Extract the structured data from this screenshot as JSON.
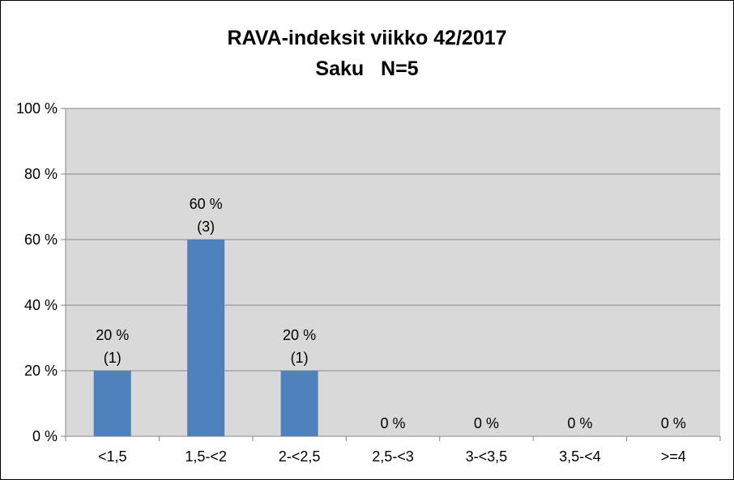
{
  "chart_data": {
    "type": "bar",
    "title": "RAVA-indeksit viikko 42/2017",
    "subtitle": "Saku   N=5",
    "categories": [
      "<1,5",
      "1,5-<2",
      "2-<2,5",
      "2,5-<3",
      "3-<3,5",
      "3,5-<4",
      ">=4"
    ],
    "values": [
      20,
      60,
      20,
      0,
      0,
      0,
      0
    ],
    "counts": [
      1,
      3,
      1,
      0,
      0,
      0,
      0
    ],
    "data_labels": [
      [
        "20 %",
        "(1)"
      ],
      [
        "60 %",
        "(3)"
      ],
      [
        "20 %",
        "(1)"
      ],
      [
        "0 %",
        ""
      ],
      [
        "0 %",
        ""
      ],
      [
        "0 %",
        ""
      ],
      [
        "0 %",
        ""
      ]
    ],
    "y_ticks": [
      "0 %",
      "20 %",
      "40 %",
      "60 %",
      "80 %",
      "100 %"
    ],
    "ylim": [
      0,
      100
    ],
    "xlabel": "",
    "ylabel": "",
    "grid": true,
    "legend": "none",
    "colors": {
      "bar": "#4f81bd",
      "plot_background": "#d9d9d9",
      "gridline": "#868686"
    }
  }
}
